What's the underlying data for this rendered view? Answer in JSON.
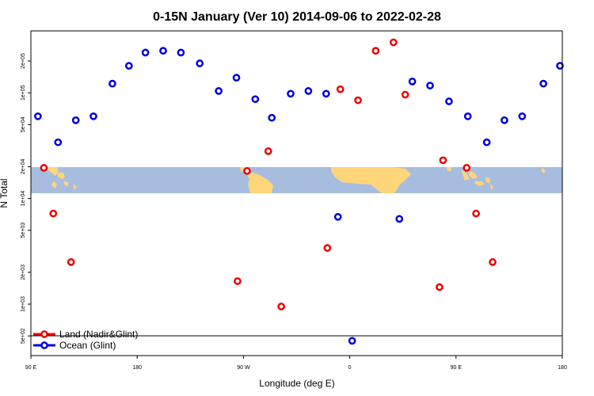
{
  "chart_data": {
    "type": "scatter",
    "title": "0-15N January (Ver 10)   2014-09-06 to 2022-02-28",
    "xlabel": "Longitude (deg E)",
    "ylabel": "N Total",
    "y_scale": "log",
    "x_ticks": [
      {
        "pos": 90,
        "label": "90 E"
      },
      {
        "pos": 180,
        "label": "180"
      },
      {
        "pos": 270,
        "label": "90 W"
      },
      {
        "pos": 360,
        "label": "0"
      },
      {
        "pos": 450,
        "label": "90 E"
      },
      {
        "pos": 540,
        "label": "180"
      }
    ],
    "y_ticks": [
      {
        "value": 500,
        "label": "5e+02"
      },
      {
        "value": 1000,
        "label": "1e+03"
      },
      {
        "value": 2000,
        "label": "2e+03"
      },
      {
        "value": 5000,
        "label": "5e+03"
      },
      {
        "value": 10000,
        "label": "1e+04"
      },
      {
        "value": 20000,
        "label": "2e+04"
      },
      {
        "value": 50000,
        "label": "5e+04"
      },
      {
        "value": 100000,
        "label": "1e+05"
      },
      {
        "value": 200000,
        "label": "2e+05"
      }
    ],
    "legend_position": "bottom-left",
    "map_band": {
      "ocean_color": "#a7bddf",
      "land_color": "#ffd57a"
    },
    "series": [
      {
        "name": "Land (Nadir&Glint)",
        "color": "#ee0000",
        "points": [
          {
            "x": 101,
            "y": 19500
          },
          {
            "x": 109,
            "y": 7200
          },
          {
            "x": 124,
            "y": 2500
          },
          {
            "x": 265,
            "y": 1650
          },
          {
            "x": 273,
            "y": 18200
          },
          {
            "x": 291,
            "y": 28000
          },
          {
            "x": 302,
            "y": 950
          },
          {
            "x": 341,
            "y": 3400
          },
          {
            "x": 352,
            "y": 108000
          },
          {
            "x": 367,
            "y": 85000
          },
          {
            "x": 382,
            "y": 250000
          },
          {
            "x": 397,
            "y": 300000
          },
          {
            "x": 407,
            "y": 96000
          },
          {
            "x": 436,
            "y": 1450
          },
          {
            "x": 439,
            "y": 23000
          },
          {
            "x": 459,
            "y": 19500
          },
          {
            "x": 467,
            "y": 7200
          },
          {
            "x": 481,
            "y": 2500
          }
        ]
      },
      {
        "name": "Ocean (Glint)",
        "color": "#0000dd",
        "points": [
          {
            "x": 96,
            "y": 60000
          },
          {
            "x": 113,
            "y": 34000
          },
          {
            "x": 128,
            "y": 55000
          },
          {
            "x": 143,
            "y": 60000
          },
          {
            "x": 159,
            "y": 122000
          },
          {
            "x": 173,
            "y": 180000
          },
          {
            "x": 187,
            "y": 240000
          },
          {
            "x": 202,
            "y": 250000
          },
          {
            "x": 217,
            "y": 240000
          },
          {
            "x": 233,
            "y": 190000
          },
          {
            "x": 249,
            "y": 104000
          },
          {
            "x": 264,
            "y": 139000
          },
          {
            "x": 280,
            "y": 87000
          },
          {
            "x": 294,
            "y": 58000
          },
          {
            "x": 310,
            "y": 98000
          },
          {
            "x": 325,
            "y": 104000
          },
          {
            "x": 340,
            "y": 98000
          },
          {
            "x": 350,
            "y": 6700
          },
          {
            "x": 362,
            "y": 450
          },
          {
            "x": 402,
            "y": 6400
          },
          {
            "x": 413,
            "y": 128000
          },
          {
            "x": 428,
            "y": 117000
          },
          {
            "x": 444,
            "y": 83000
          },
          {
            "x": 460,
            "y": 60000
          },
          {
            "x": 476,
            "y": 34000
          },
          {
            "x": 491,
            "y": 55000
          },
          {
            "x": 506,
            "y": 60000
          },
          {
            "x": 524,
            "y": 122000
          },
          {
            "x": 538,
            "y": 180000
          }
        ]
      }
    ]
  }
}
